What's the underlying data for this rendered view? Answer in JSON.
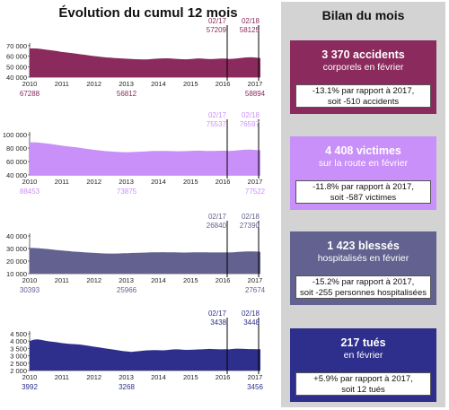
{
  "left_title": "Évolution du cumul 12 mois",
  "right_title": "Bilan du mois",
  "chart_data": [
    {
      "type": "area",
      "color": "#8b2a5c",
      "yticks": [
        "70 000",
        "60 000",
        "50 000",
        "40 000"
      ],
      "yrange": [
        40000,
        75000
      ],
      "xticks": [
        "2010",
        "2011",
        "2012",
        "2013",
        "2014",
        "2015",
        "2016",
        "2017"
      ],
      "marker_labels": [
        {
          "date": "02/17",
          "value": "57209"
        },
        {
          "date": "02/18",
          "value": "58125"
        }
      ],
      "bottom_labels": [
        {
          "year": "2010",
          "value": "67288"
        },
        {
          "year": "2013",
          "value": "56812"
        },
        {
          "year": "2017",
          "value": "58894"
        }
      ],
      "values": [
        67288,
        67350,
        67200,
        66800,
        66300,
        65800,
        65300,
        64800,
        64200,
        63700,
        63300,
        62900,
        62300,
        61800,
        61300,
        60800,
        60300,
        59800,
        59400,
        59000,
        58700,
        58400,
        58100,
        57900,
        57700,
        57500,
        57300,
        57100,
        56950,
        56812,
        56900,
        57200,
        57500,
        57700,
        57800,
        57900,
        57800,
        57500,
        57300,
        57100,
        57000,
        57200,
        57500,
        57800,
        57700,
        57400,
        57200,
        57300,
        57500,
        57700,
        57700,
        57209,
        57500,
        57800,
        58300,
        58700,
        58900,
        58894,
        58500,
        58125
      ]
    },
    {
      "type": "area",
      "color": "#c890f8",
      "yticks": [
        "100 000",
        "80 000",
        "60 000",
        "40 000"
      ],
      "yrange": [
        40000,
        100000
      ],
      "xticks": [
        "2010",
        "2011",
        "2012",
        "2013",
        "2014",
        "2015",
        "2016",
        "2017"
      ],
      "marker_labels": [
        {
          "date": "02/17",
          "value": "75537"
        },
        {
          "date": "02/18",
          "value": "76597"
        }
      ],
      "bottom_labels": [
        {
          "year": "2010",
          "value": "88453"
        },
        {
          "year": "2013",
          "value": "73875"
        },
        {
          "year": "2017",
          "value": "77522"
        }
      ],
      "values": [
        88453,
        88550,
        88300,
        87700,
        87000,
        86300,
        85500,
        84700,
        83900,
        83100,
        82400,
        81700,
        80900,
        80100,
        79300,
        78500,
        77700,
        77000,
        76300,
        75700,
        75200,
        74800,
        74400,
        74100,
        73900,
        73875,
        74000,
        74300,
        74500,
        74800,
        75100,
        75400,
        75600,
        75700,
        75800,
        75700,
        75500,
        75300,
        75200,
        75300,
        75500,
        75800,
        76000,
        76100,
        76000,
        75800,
        75600,
        75700,
        75900,
        76000,
        76000,
        75537,
        76000,
        76600,
        77100,
        77400,
        77600,
        77522,
        77100,
        76597
      ]
    },
    {
      "type": "area",
      "color": "#62618f",
      "yticks": [
        "40 000",
        "30 000",
        "20 000",
        "10 000"
      ],
      "yrange": [
        10000,
        40000
      ],
      "xticks": [
        "2010",
        "2011",
        "2012",
        "2013",
        "2014",
        "2015",
        "2016",
        "2017"
      ],
      "marker_labels": [
        {
          "date": "02/17",
          "value": "26840"
        },
        {
          "date": "02/18",
          "value": "27390"
        }
      ],
      "bottom_labels": [
        {
          "year": "2010",
          "value": "30393"
        },
        {
          "year": "2013",
          "value": "25966"
        },
        {
          "year": "2017",
          "value": "27674"
        }
      ],
      "values": [
        30393,
        30450,
        30300,
        30000,
        29700,
        29400,
        29100,
        28800,
        28500,
        28200,
        27900,
        27600,
        27400,
        27200,
        27000,
        26800,
        26600,
        26400,
        26250,
        26100,
        26000,
        25966,
        26000,
        26100,
        26200,
        26300,
        26400,
        26500,
        26600,
        26700,
        26800,
        26900,
        26950,
        27000,
        27050,
        27000,
        26950,
        26900,
        26850,
        26800,
        26800,
        26850,
        26900,
        26950,
        26950,
        26900,
        26880,
        26860,
        26850,
        26860,
        26870,
        26840,
        27000,
        27200,
        27400,
        27550,
        27650,
        27674,
        27550,
        27390
      ]
    },
    {
      "type": "area",
      "color": "#2e2e8c",
      "yticks": [
        "4 500",
        "4 000",
        "3 500",
        "3 000",
        "2 500",
        "2 000"
      ],
      "yrange": [
        2000,
        4500
      ],
      "xticks": [
        "2010",
        "2011",
        "2012",
        "2013",
        "2014",
        "2015",
        "2016",
        "2017"
      ],
      "marker_labels": [
        {
          "date": "02/17",
          "value": "3438"
        },
        {
          "date": "02/18",
          "value": "3448"
        }
      ],
      "bottom_labels": [
        {
          "year": "2010",
          "value": "3992"
        },
        {
          "year": "2013",
          "value": "3268"
        },
        {
          "year": "2017",
          "value": "3456"
        }
      ],
      "values": [
        3992,
        4100,
        4120,
        4080,
        4030,
        3980,
        3950,
        3920,
        3880,
        3850,
        3820,
        3800,
        3780,
        3760,
        3720,
        3680,
        3640,
        3600,
        3560,
        3520,
        3480,
        3440,
        3400,
        3360,
        3320,
        3290,
        3268,
        3290,
        3320,
        3350,
        3370,
        3380,
        3390,
        3380,
        3370,
        3390,
        3420,
        3440,
        3440,
        3420,
        3400,
        3410,
        3420,
        3430,
        3440,
        3460,
        3470,
        3460,
        3450,
        3440,
        3445,
        3438,
        3470,
        3490,
        3480,
        3470,
        3460,
        3456,
        3450,
        3448
      ]
    }
  ],
  "cards": [
    {
      "color": "#8b2a5c",
      "big": "3 370 accidents",
      "sub": "corporels en février",
      "line1": "-13.1% par rapport à 2017,",
      "line2": "soit -510 accidents"
    },
    {
      "color": "#c890f8",
      "big": "4 408 victimes",
      "sub": "sur la route en février",
      "line1": "-11.8% par rapport à 2017,",
      "line2": "soit -587 victimes"
    },
    {
      "color": "#62618f",
      "big": "1 423 blessés",
      "sub": "hospitalisés en février",
      "line1": "-15.2% par rapport à 2017,",
      "line2": "soit -255 personnes hospitalisées"
    },
    {
      "color": "#2e2e8c",
      "big": "217 tués",
      "sub": "en février",
      "line1": "+5.9% par rapport à 2017,",
      "line2": "soit 12 tués"
    }
  ]
}
